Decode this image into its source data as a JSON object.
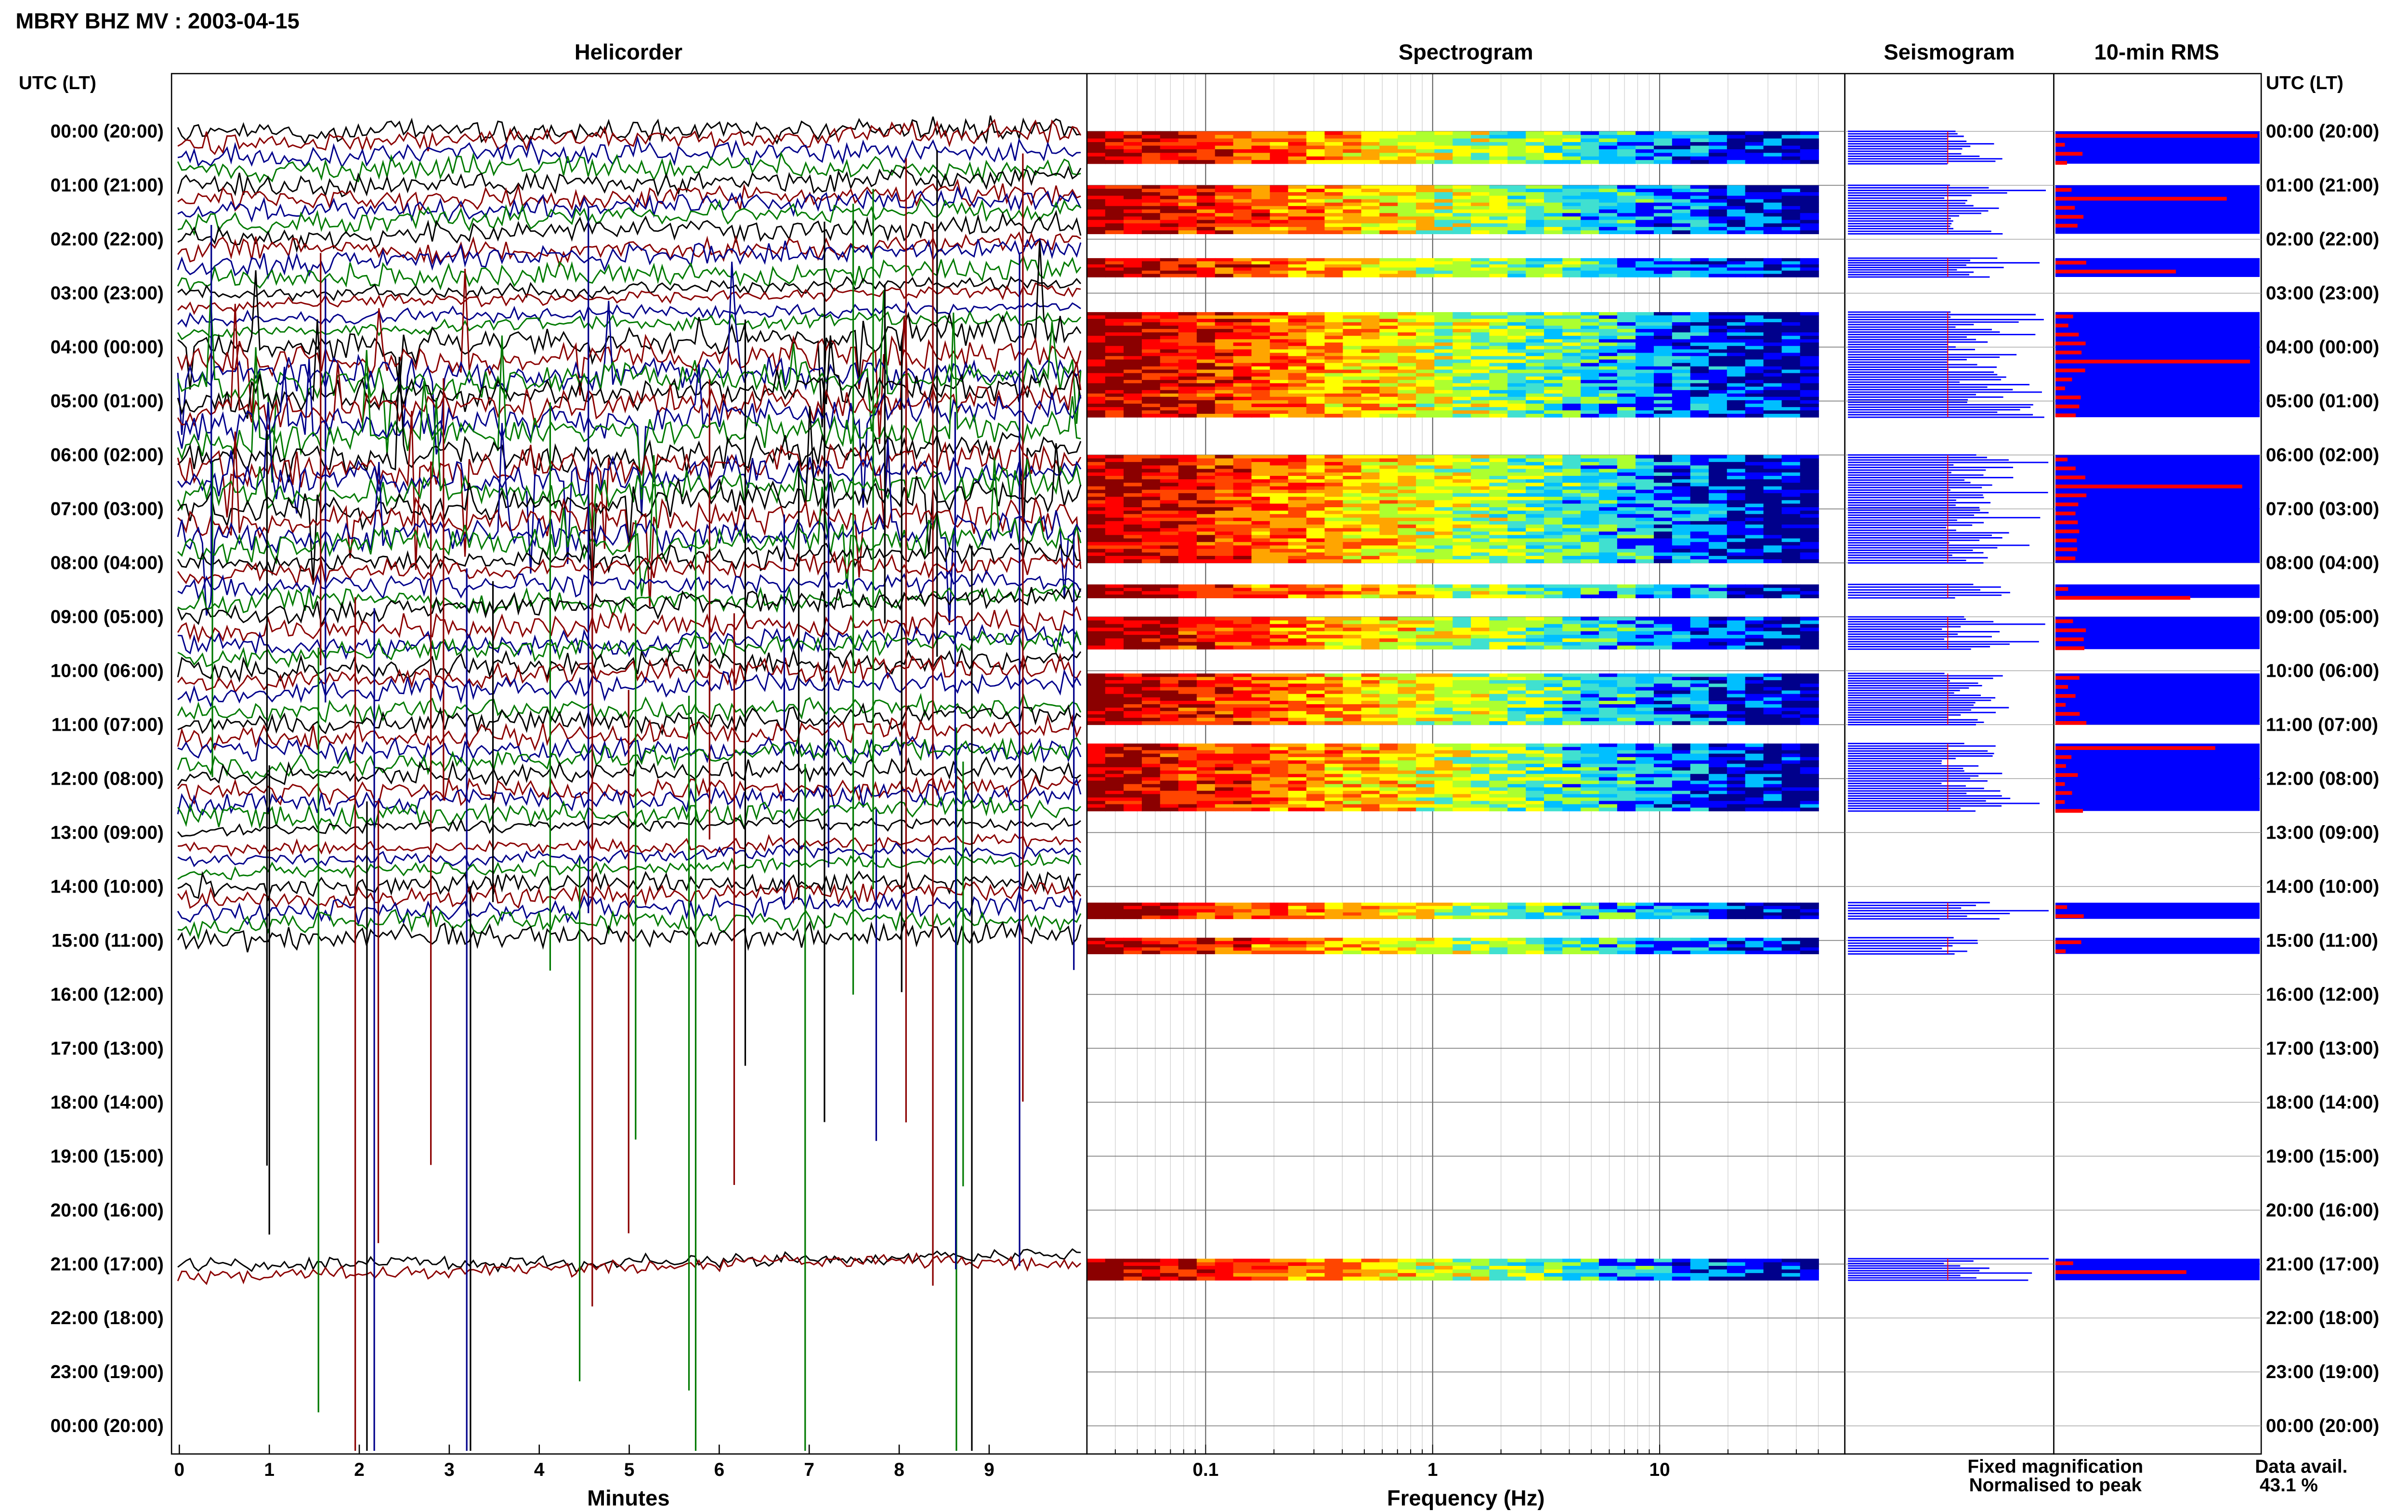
{
  "title": "MBRY BHZ MV : 2003-04-15",
  "headers": {
    "helicorder": "Helicorder",
    "spectrogram": "Spectrogram",
    "seismogram": "Seismogram",
    "rms": "10-min RMS"
  },
  "time_axis_label": "UTC (LT)",
  "time_labels": [
    "00:00 (20:00)",
    "01:00 (21:00)",
    "02:00 (22:00)",
    "03:00 (23:00)",
    "04:00 (00:00)",
    "05:00 (01:00)",
    "06:00 (02:00)",
    "07:00 (03:00)",
    "08:00 (04:00)",
    "09:00 (05:00)",
    "10:00 (06:00)",
    "11:00 (07:00)",
    "12:00 (08:00)",
    "13:00 (09:00)",
    "14:00 (10:00)",
    "15:00 (11:00)",
    "16:00 (12:00)",
    "17:00 (13:00)",
    "18:00 (14:00)",
    "19:00 (15:00)",
    "20:00 (16:00)",
    "21:00 (17:00)",
    "22:00 (18:00)",
    "23:00 (19:00)",
    "00:00 (20:00)"
  ],
  "legend": {
    "fixed": "Fixed magnification",
    "normalised": "Normalised to peak",
    "fixed_color": "#0000ff",
    "normalised_color": "#ff0000"
  },
  "data_avail": {
    "label": "Data avail.",
    "value": "43.1 %"
  },
  "colors": {
    "trace_colors": [
      "#000000",
      "#8b0000",
      "#00008b",
      "#007a00"
    ],
    "rms_fill": "#0000ff",
    "rms_peak": "#ff0000",
    "seismo_fill": "#0000ff"
  },
  "chart_data": [
    {
      "type": "line",
      "panel": "helicorder",
      "xlabel": "Minutes",
      "xlim": [
        0,
        10
      ],
      "x_ticks": [
        0,
        1,
        2,
        3,
        4,
        5,
        6,
        7,
        8,
        9
      ],
      "ylim_hours_utc": [
        0,
        24
      ],
      "data_hours_utc": [
        [
          0,
          15
        ],
        [
          20.9,
          21.3
        ]
      ],
      "activity": [
        2,
        2,
        2,
        1,
        3,
        3,
        3,
        3,
        2,
        2,
        2,
        2,
        2,
        1,
        2,
        2,
        0,
        0,
        0,
        0,
        0,
        1,
        0,
        0
      ]
    },
    {
      "type": "heatmap",
      "panel": "spectrogram",
      "xlabel": "Frequency (Hz)",
      "x_scale": "log",
      "xlim_hz": [
        0.03,
        50
      ],
      "x_tick_labels": [
        "0.1",
        "1",
        "10"
      ],
      "x_tick_values": [
        0.1,
        1,
        10
      ],
      "colormap": [
        "#00008b",
        "#0000ff",
        "#00bfff",
        "#40e0d0",
        "#adff2f",
        "#ffff00",
        "#ffa500",
        "#ff4500",
        "#ff0000",
        "#8b0000"
      ],
      "data_blocks_hours_utc": [
        [
          0.0,
          0.6
        ],
        [
          1.0,
          1.9
        ],
        [
          2.35,
          2.7
        ],
        [
          3.35,
          5.3
        ],
        [
          6.0,
          8.0
        ],
        [
          8.4,
          8.65
        ],
        [
          9.0,
          9.6
        ],
        [
          10.05,
          11.0
        ],
        [
          11.35,
          12.6
        ],
        [
          14.3,
          14.6
        ],
        [
          14.95,
          15.25
        ],
        [
          20.9,
          21.3
        ]
      ]
    },
    {
      "type": "area",
      "panel": "seismogram",
      "series": [
        {
          "name": "Fixed magnification"
        },
        {
          "name": "Normalised to peak"
        }
      ]
    },
    {
      "type": "bar",
      "panel": "10-min RMS",
      "interval_minutes": 10,
      "peak_rows_hours_utc": [
        0.1,
        1.25,
        2.6,
        4.25,
        6.6,
        8.6,
        11.5,
        21.2
      ],
      "series": [
        {
          "name": "Fixed magnification"
        },
        {
          "name": "Normalised to peak"
        }
      ]
    }
  ]
}
